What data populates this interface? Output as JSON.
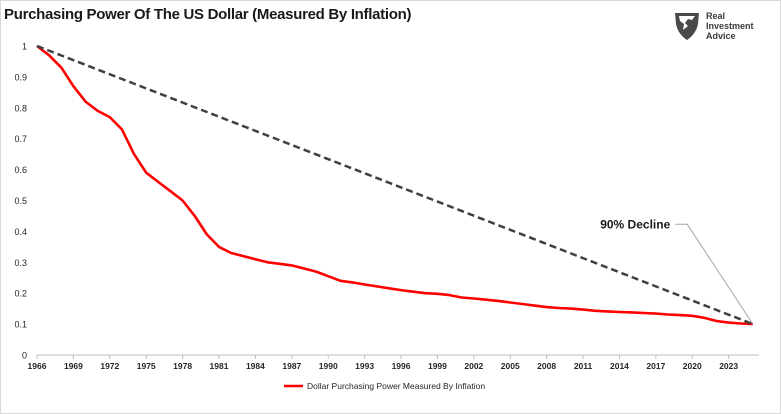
{
  "title": "Purchasing Power Of The US Dollar (Measured By Inflation)",
  "logo": {
    "line1": "Real",
    "line2": "Investment",
    "line3": "Advice"
  },
  "chart_data": {
    "type": "line",
    "title": "Purchasing Power Of The US Dollar (Measured By Inflation)",
    "xlabel": "",
    "ylabel": "",
    "xlim": [
      1966,
      2025.5
    ],
    "ylim": [
      0,
      1
    ],
    "x_ticks": [
      1966,
      1969,
      1972,
      1975,
      1978,
      1981,
      1984,
      1987,
      1990,
      1993,
      1996,
      1999,
      2002,
      2005,
      2008,
      2011,
      2014,
      2017,
      2020,
      2023
    ],
    "y_ticks": [
      0,
      0.1,
      0.2,
      0.3,
      0.4,
      0.5,
      0.6,
      0.7,
      0.8,
      0.9,
      1
    ],
    "y_tick_labels": [
      "0",
      "0.1",
      "0.2",
      "0.3",
      "0.4",
      "0.5",
      "0.6",
      "0.7",
      "0.8",
      "0.9",
      "1"
    ],
    "grid": false,
    "legend": {
      "placement": "bottom-center",
      "entries": [
        "Dollar Purchasing Power Measured By Inflation"
      ]
    },
    "series": [
      {
        "name": "Dollar Purchasing Power Measured By Inflation",
        "color": "#ff0000",
        "style": "solid",
        "x": [
          1966,
          1967,
          1968,
          1969,
          1970,
          1971,
          1972,
          1973,
          1974,
          1975,
          1976,
          1977,
          1978,
          1979,
          1980,
          1981,
          1982,
          1983,
          1984,
          1985,
          1986,
          1987,
          1988,
          1989,
          1990,
          1991,
          1992,
          1993,
          1994,
          1995,
          1996,
          1997,
          1998,
          1999,
          2000,
          2001,
          2002,
          2003,
          2004,
          2005,
          2006,
          2007,
          2008,
          2009,
          2010,
          2011,
          2012,
          2013,
          2014,
          2015,
          2016,
          2017,
          2018,
          2019,
          2020,
          2021,
          2022,
          2023,
          2024,
          2025
        ],
        "y": [
          1.0,
          0.97,
          0.93,
          0.87,
          0.82,
          0.79,
          0.77,
          0.73,
          0.65,
          0.59,
          0.56,
          0.53,
          0.5,
          0.45,
          0.39,
          0.35,
          0.33,
          0.32,
          0.31,
          0.3,
          0.295,
          0.29,
          0.28,
          0.27,
          0.255,
          0.24,
          0.235,
          0.228,
          0.222,
          0.216,
          0.21,
          0.205,
          0.2,
          0.198,
          0.194,
          0.186,
          0.183,
          0.179,
          0.175,
          0.17,
          0.165,
          0.16,
          0.155,
          0.152,
          0.15,
          0.147,
          0.143,
          0.141,
          0.139,
          0.138,
          0.136,
          0.134,
          0.131,
          0.129,
          0.127,
          0.12,
          0.11,
          0.105,
          0.102,
          0.1
        ]
      },
      {
        "style": "dashed",
        "color": "#404040",
        "x": [
          1966,
          2025
        ],
        "y": [
          1.0,
          0.1
        ]
      }
    ],
    "annotations": [
      {
        "text": "90% Decline",
        "x": 2015.3,
        "y": 0.41,
        "arrow_to": {
          "x": 2025,
          "y": 0.1
        }
      }
    ]
  }
}
